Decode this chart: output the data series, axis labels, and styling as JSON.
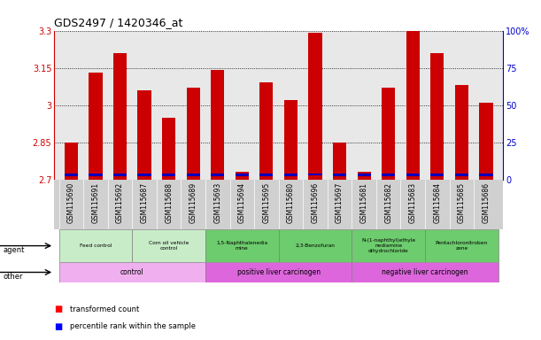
{
  "title": "GDS2497 / 1420346_at",
  "samples": [
    "GSM115690",
    "GSM115691",
    "GSM115692",
    "GSM115687",
    "GSM115688",
    "GSM115689",
    "GSM115693",
    "GSM115694",
    "GSM115695",
    "GSM115680",
    "GSM115696",
    "GSM115697",
    "GSM115681",
    "GSM115682",
    "GSM115683",
    "GSM115684",
    "GSM115685",
    "GSM115686"
  ],
  "red_values": [
    2.85,
    3.13,
    3.21,
    3.06,
    2.95,
    3.07,
    3.14,
    2.73,
    3.09,
    3.02,
    3.29,
    2.85,
    2.73,
    3.07,
    3.3,
    3.21,
    3.08,
    3.01
  ],
  "blue_y": [
    2.713,
    2.715,
    2.715,
    2.714,
    2.714,
    2.715,
    2.715,
    2.713,
    2.715,
    2.715,
    2.716,
    2.715,
    2.713,
    2.715,
    2.715,
    2.715,
    2.715,
    2.714
  ],
  "ymin": 2.7,
  "ymax": 3.3,
  "yticks": [
    2.7,
    2.85,
    3.0,
    3.15,
    3.3
  ],
  "ytick_labels": [
    "2.7",
    "2.85",
    "3",
    "3.15",
    "3.3"
  ],
  "right_yticks": [
    0,
    25,
    50,
    75,
    100
  ],
  "right_ytick_labels": [
    "0",
    "25",
    "50",
    "75",
    "100%"
  ],
  "agent_groups": [
    {
      "label": "Feed control",
      "start": 0,
      "end": 3,
      "color": "#c8ecc8"
    },
    {
      "label": "Corn oil vehicle\ncontrol",
      "start": 3,
      "end": 6,
      "color": "#c8ecc8"
    },
    {
      "label": "1,5-Naphthalenedia\nmine",
      "start": 6,
      "end": 9,
      "color": "#6dcc6d"
    },
    {
      "label": "2,3-Benzofuran",
      "start": 9,
      "end": 12,
      "color": "#6dcc6d"
    },
    {
      "label": "N-(1-naphthyl)ethyle\nnediamine\ndihydrochloride",
      "start": 12,
      "end": 15,
      "color": "#6dcc6d"
    },
    {
      "label": "Pentachloronitroben\nzene",
      "start": 15,
      "end": 18,
      "color": "#6dcc6d"
    }
  ],
  "other_groups": [
    {
      "label": "control",
      "start": 0,
      "end": 6,
      "color": "#f0b0f0"
    },
    {
      "label": "positive liver carcinogen",
      "start": 6,
      "end": 12,
      "color": "#dd66dd"
    },
    {
      "label": "negative liver carcinogen",
      "start": 12,
      "end": 18,
      "color": "#dd66dd"
    }
  ],
  "bar_width": 0.55,
  "red_color": "#cc0000",
  "blue_color": "#0000bb",
  "left_color": "#cc0000",
  "right_color": "#0000cc",
  "plot_bg": "#e8e8e8",
  "tick_area_bg": "#d0d0d0"
}
